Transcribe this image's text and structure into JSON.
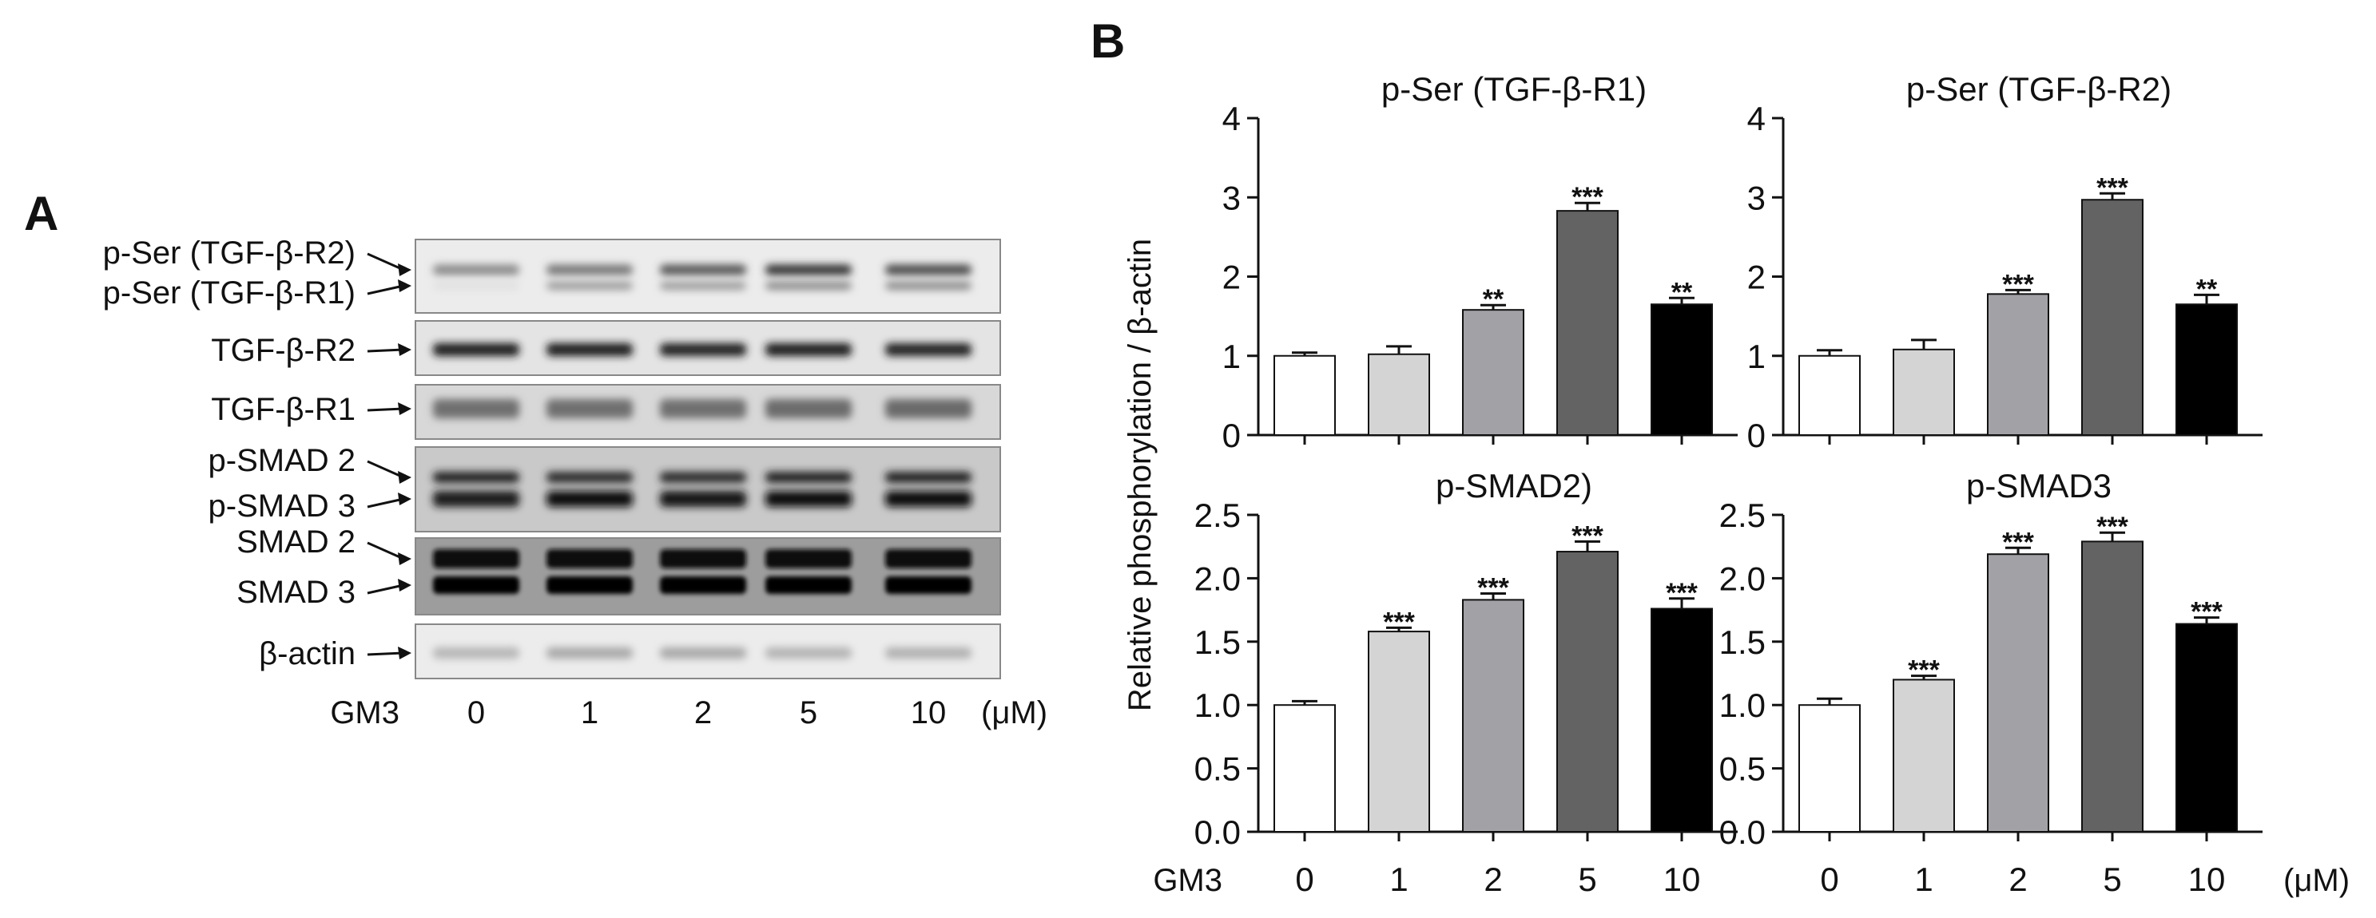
{
  "panel_a": {
    "letter": "A",
    "blot_labels": [
      {
        "text": "p-Ser (TGF-β-R2)",
        "band": 0,
        "row": 0
      },
      {
        "text": "p-Ser (TGF-β-R1)",
        "band": 0,
        "row": 1
      },
      {
        "text": "TGF-β-R2",
        "band": 1,
        "row": -1
      },
      {
        "text": "TGF-β-R1",
        "band": 2,
        "row": -1
      },
      {
        "text": "p-SMAD 2",
        "band": 3,
        "row": 0
      },
      {
        "text": "p-SMAD 3",
        "band": 3,
        "row": 1
      },
      {
        "text": "SMAD 2",
        "band": 4,
        "row": 0
      },
      {
        "text": "SMAD 3",
        "band": 4,
        "row": 1
      },
      {
        "text": "β-actin",
        "band": 5,
        "row": -1
      }
    ],
    "treatment_label": "GM3",
    "lanes": [
      "0",
      "1",
      "2",
      "5",
      "10"
    ],
    "unit": "(μM)"
  },
  "panel_b": {
    "letter": "B",
    "shared_ylabel": "Relative phosphorylation / β-actin",
    "treatment_label": "GM3",
    "unit": "(μM)"
  },
  "colors": [
    "#ffffff",
    "#d4d4d4",
    "#a2a2a6",
    "#636363",
    "#000000"
  ],
  "chart_data": [
    {
      "type": "bar",
      "title": "p-Ser (TGF-β-R1)",
      "categories": [
        "0",
        "1",
        "2",
        "5",
        "10"
      ],
      "values": [
        1.0,
        1.02,
        1.58,
        2.83,
        1.65
      ],
      "errors": [
        0.04,
        0.1,
        0.06,
        0.1,
        0.08
      ],
      "significance": [
        "",
        "",
        "**",
        "***",
        "**"
      ],
      "ylim": [
        0,
        4
      ],
      "yticks": [
        "0",
        "1",
        "2",
        "3",
        "4"
      ]
    },
    {
      "type": "bar",
      "title": "p-Ser (TGF-β-R2)",
      "categories": [
        "0",
        "1",
        "2",
        "5",
        "10"
      ],
      "values": [
        1.0,
        1.08,
        1.78,
        2.97,
        1.65
      ],
      "errors": [
        0.07,
        0.12,
        0.05,
        0.08,
        0.12
      ],
      "significance": [
        "",
        "",
        "***",
        "***",
        "**"
      ],
      "ylim": [
        0,
        4
      ],
      "yticks": [
        "0",
        "1",
        "2",
        "3",
        "4"
      ]
    },
    {
      "type": "bar",
      "title": "p-SMAD2)",
      "categories": [
        "0",
        "1",
        "2",
        "5",
        "10"
      ],
      "values": [
        1.0,
        1.58,
        1.83,
        2.21,
        1.76
      ],
      "errors": [
        0.03,
        0.03,
        0.05,
        0.08,
        0.08
      ],
      "significance": [
        "",
        "***",
        "***",
        "***",
        "***"
      ],
      "ylim": [
        0,
        2.5
      ],
      "yticks": [
        "0.0",
        "0.5",
        "1.0",
        "1.5",
        "2.0",
        "2.5"
      ]
    },
    {
      "type": "bar",
      "title": "p-SMAD3",
      "categories": [
        "0",
        "1",
        "2",
        "5",
        "10"
      ],
      "values": [
        1.0,
        1.2,
        2.19,
        2.29,
        1.64
      ],
      "errors": [
        0.05,
        0.03,
        0.05,
        0.07,
        0.05
      ],
      "significance": [
        "",
        "***",
        "***",
        "***",
        "***"
      ],
      "ylim": [
        0,
        2.5
      ],
      "yticks": [
        "0.0",
        "0.5",
        "1.0",
        "1.5",
        "2.0",
        "2.5"
      ]
    }
  ]
}
